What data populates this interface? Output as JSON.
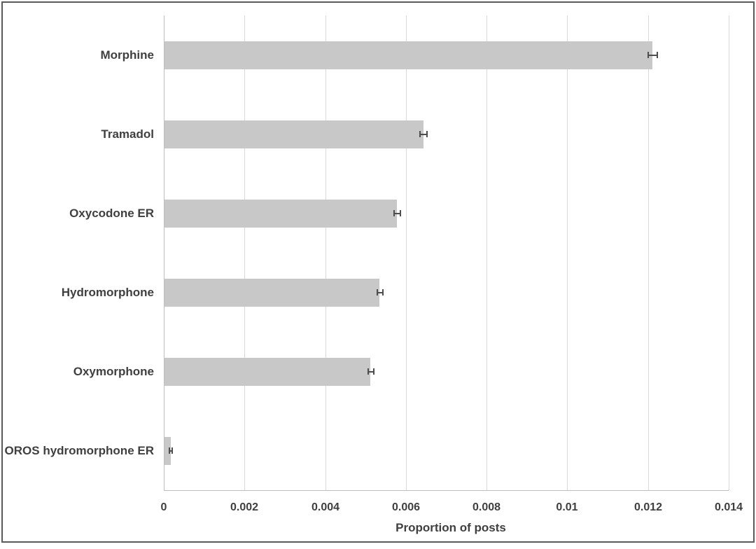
{
  "chart_data": {
    "type": "bar",
    "orientation": "horizontal",
    "title": "",
    "xlabel": "Proportion of posts",
    "ylabel": "",
    "categories": [
      "Morphine",
      "Tramadol",
      "Oxycodone ER",
      "Hydromorphone",
      "Oxymorphone",
      "OROS hydromorphone ER"
    ],
    "values": [
      0.01211,
      0.00643,
      0.00578,
      0.00535,
      0.00512,
      0.00017
    ],
    "error_bars": [
      0.00012,
      0.0001,
      9e-05,
      8e-05,
      8e-05,
      4e-05
    ],
    "xlim": [
      0,
      0.014
    ],
    "x_ticks": [
      0,
      0.002,
      0.004,
      0.006,
      0.008,
      0.01,
      0.012,
      0.014
    ],
    "x_tick_labels": [
      "0",
      "0.002",
      "0.004",
      "0.006",
      "0.008",
      "0.01",
      "0.012",
      "0.014"
    ],
    "grid": "vertical-only",
    "legend": "none"
  },
  "colors": {
    "bar_fill": "#c8c8c8",
    "grid_line": "#d9d9d9",
    "axis_line": "#bfbfbf",
    "text": "#3f3f3f",
    "error_bar": "#4d4d4d",
    "frame_border": "#5a5a5a",
    "background": "#ffffff"
  }
}
